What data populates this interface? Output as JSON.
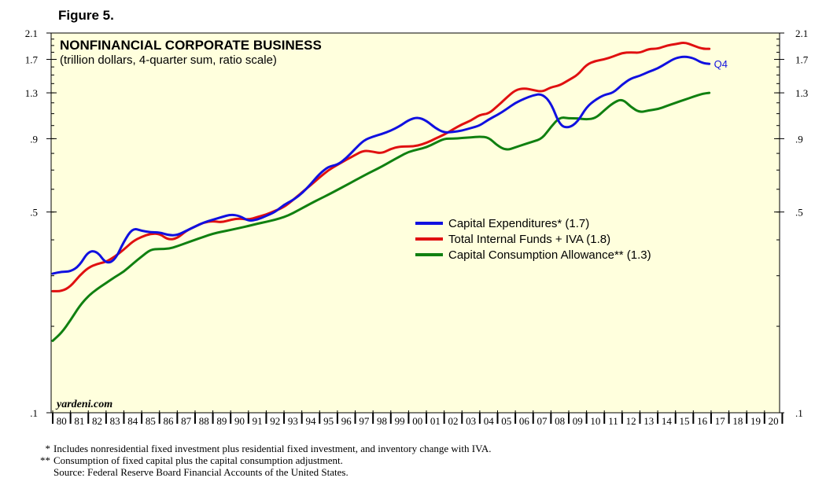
{
  "figure": {
    "label": "Figure 5."
  },
  "chart_data": {
    "type": "line",
    "title": "NONFINANCIAL CORPORATE BUSINESS",
    "subtitle": "(trillion dollars, 4-quarter sum, ratio scale)",
    "scale": "log",
    "ylim": [
      0.1,
      2.1
    ],
    "xlim": [
      1980,
      2021
    ],
    "yticks": [
      0.1,
      0.5,
      0.9,
      1.3,
      1.7,
      2.1
    ],
    "ytick_labels": [
      ".1",
      ".5",
      ".9",
      "1.3",
      "1.7",
      "2.1"
    ],
    "x_tick_labels": [
      "80",
      "81",
      "82",
      "83",
      "84",
      "85",
      "86",
      "87",
      "88",
      "89",
      "90",
      "91",
      "92",
      "93",
      "94",
      "95",
      "96",
      "97",
      "98",
      "99",
      "00",
      "01",
      "02",
      "03",
      "04",
      "05",
      "06",
      "07",
      "08",
      "09",
      "10",
      "11",
      "12",
      "13",
      "14",
      "15",
      "16",
      "17",
      "18",
      "19",
      "20"
    ],
    "annotation": "Q4",
    "watermark": "yardeni.com",
    "legend_position": "center-right",
    "series": [
      {
        "name": "Capital Expenditures* (1.7)",
        "color": "#1010e0",
        "x": [
          1980.0,
          1980.5,
          1981.0,
          1981.5,
          1982.0,
          1982.5,
          1983.0,
          1983.5,
          1984.0,
          1984.5,
          1985.0,
          1985.5,
          1986.0,
          1986.5,
          1987.0,
          1987.5,
          1988.0,
          1988.5,
          1989.0,
          1989.5,
          1990.0,
          1990.5,
          1991.0,
          1991.5,
          1992.0,
          1992.5,
          1993.0,
          1993.5,
          1994.0,
          1994.5,
          1995.0,
          1995.5,
          1996.0,
          1996.5,
          1997.0,
          1997.5,
          1998.0,
          1998.5,
          1999.0,
          1999.5,
          2000.0,
          2000.5,
          2001.0,
          2001.5,
          2002.0,
          2002.5,
          2003.0,
          2003.5,
          2004.0,
          2004.5,
          2005.0,
          2005.5,
          2006.0,
          2006.5,
          2007.0,
          2007.5,
          2008.0,
          2008.5,
          2009.0,
          2009.5,
          2010.0,
          2010.5,
          2011.0,
          2011.5,
          2012.0,
          2012.5,
          2013.0,
          2013.5,
          2014.0,
          2014.5,
          2015.0,
          2015.5,
          2016.0,
          2016.5,
          2016.9
        ],
        "values": [
          0.305,
          0.31,
          0.31,
          0.325,
          0.365,
          0.365,
          0.33,
          0.34,
          0.395,
          0.44,
          0.43,
          0.425,
          0.425,
          0.415,
          0.415,
          0.43,
          0.445,
          0.46,
          0.47,
          0.48,
          0.49,
          0.485,
          0.465,
          0.47,
          0.485,
          0.5,
          0.53,
          0.55,
          0.58,
          0.625,
          0.68,
          0.72,
          0.73,
          0.77,
          0.83,
          0.89,
          0.915,
          0.935,
          0.96,
          0.995,
          1.045,
          1.07,
          1.04,
          0.98,
          0.945,
          0.95,
          0.96,
          0.98,
          1.0,
          1.05,
          1.09,
          1.14,
          1.2,
          1.24,
          1.275,
          1.29,
          1.2,
          1.0,
          0.98,
          1.03,
          1.16,
          1.23,
          1.28,
          1.3,
          1.39,
          1.46,
          1.49,
          1.54,
          1.58,
          1.65,
          1.72,
          1.74,
          1.72,
          1.65,
          1.64
        ]
      },
      {
        "name": "Total Internal Funds + IVA (1.8)",
        "color": "#e01010",
        "x": [
          1980.0,
          1980.5,
          1981.0,
          1981.5,
          1982.0,
          1982.5,
          1983.0,
          1983.5,
          1984.0,
          1984.5,
          1985.0,
          1985.5,
          1986.0,
          1986.5,
          1987.0,
          1987.5,
          1988.0,
          1988.5,
          1989.0,
          1989.5,
          1990.0,
          1990.5,
          1991.0,
          1991.5,
          1992.0,
          1992.5,
          1993.0,
          1993.5,
          1994.0,
          1994.5,
          1995.0,
          1995.5,
          1996.0,
          1996.5,
          1997.0,
          1997.5,
          1998.0,
          1998.5,
          1999.0,
          1999.5,
          2000.0,
          2000.5,
          2001.0,
          2001.5,
          2002.0,
          2002.5,
          2003.0,
          2003.5,
          2004.0,
          2004.5,
          2005.0,
          2005.5,
          2006.0,
          2006.5,
          2007.0,
          2007.5,
          2008.0,
          2008.5,
          2009.0,
          2009.5,
          2010.0,
          2010.5,
          2011.0,
          2011.5,
          2012.0,
          2012.5,
          2013.0,
          2013.5,
          2014.0,
          2014.5,
          2015.0,
          2015.5,
          2016.0,
          2016.5,
          2016.9
        ],
        "values": [
          0.265,
          0.265,
          0.275,
          0.3,
          0.32,
          0.33,
          0.335,
          0.35,
          0.37,
          0.395,
          0.41,
          0.42,
          0.42,
          0.4,
          0.405,
          0.43,
          0.445,
          0.46,
          0.465,
          0.46,
          0.47,
          0.475,
          0.47,
          0.48,
          0.49,
          0.505,
          0.52,
          0.55,
          0.585,
          0.62,
          0.66,
          0.7,
          0.73,
          0.76,
          0.79,
          0.82,
          0.81,
          0.8,
          0.83,
          0.845,
          0.845,
          0.85,
          0.87,
          0.9,
          0.93,
          0.97,
          1.01,
          1.04,
          1.09,
          1.1,
          1.17,
          1.25,
          1.33,
          1.35,
          1.33,
          1.31,
          1.36,
          1.38,
          1.44,
          1.5,
          1.63,
          1.68,
          1.7,
          1.74,
          1.79,
          1.8,
          1.79,
          1.85,
          1.85,
          1.9,
          1.92,
          1.95,
          1.9,
          1.85,
          1.85
        ]
      },
      {
        "name": "Capital Consumption Allowance** (1.3)",
        "color": "#108010",
        "x": [
          1980.0,
          1980.5,
          1981.0,
          1981.5,
          1982.0,
          1982.5,
          1983.0,
          1983.5,
          1984.0,
          1984.5,
          1985.0,
          1985.5,
          1986.0,
          1986.5,
          1987.0,
          1987.5,
          1988.0,
          1988.5,
          1989.0,
          1989.5,
          1990.0,
          1990.5,
          1991.0,
          1991.5,
          1992.0,
          1992.5,
          1993.0,
          1993.5,
          1994.0,
          1994.5,
          1995.0,
          1995.5,
          1996.0,
          1996.5,
          1997.0,
          1997.5,
          1998.0,
          1998.5,
          1999.0,
          1999.5,
          2000.0,
          2000.5,
          2001.0,
          2001.5,
          2002.0,
          2002.5,
          2003.0,
          2003.5,
          2004.0,
          2004.5,
          2005.0,
          2005.5,
          2006.0,
          2006.5,
          2007.0,
          2007.5,
          2008.0,
          2008.5,
          2009.0,
          2009.5,
          2010.0,
          2010.5,
          2011.0,
          2011.5,
          2012.0,
          2012.5,
          2013.0,
          2013.5,
          2014.0,
          2014.5,
          2015.0,
          2015.5,
          2016.0,
          2016.5,
          2016.9
        ],
        "values": [
          0.178,
          0.19,
          0.21,
          0.235,
          0.255,
          0.27,
          0.283,
          0.297,
          0.31,
          0.33,
          0.35,
          0.37,
          0.372,
          0.372,
          0.38,
          0.39,
          0.4,
          0.41,
          0.42,
          0.427,
          0.433,
          0.44,
          0.447,
          0.455,
          0.462,
          0.47,
          0.48,
          0.495,
          0.515,
          0.535,
          0.555,
          0.575,
          0.597,
          0.62,
          0.645,
          0.67,
          0.695,
          0.72,
          0.75,
          0.78,
          0.81,
          0.825,
          0.84,
          0.87,
          0.9,
          0.9,
          0.905,
          0.91,
          0.915,
          0.91,
          0.85,
          0.82,
          0.84,
          0.86,
          0.88,
          0.9,
          0.99,
          1.07,
          1.06,
          1.06,
          1.05,
          1.06,
          1.13,
          1.2,
          1.24,
          1.16,
          1.11,
          1.13,
          1.14,
          1.17,
          1.2,
          1.23,
          1.26,
          1.29,
          1.3
        ]
      }
    ]
  },
  "footnotes": {
    "note1_mark": "*",
    "note1": "Includes nonresidential fixed investment plus residential fixed investment, and inventory change with IVA.",
    "note2_mark": "**",
    "note2": "Consumption of fixed capital plus the capital consumption adjustment.",
    "source": "Source: Federal Reserve Board Financial Accounts of the United States."
  }
}
